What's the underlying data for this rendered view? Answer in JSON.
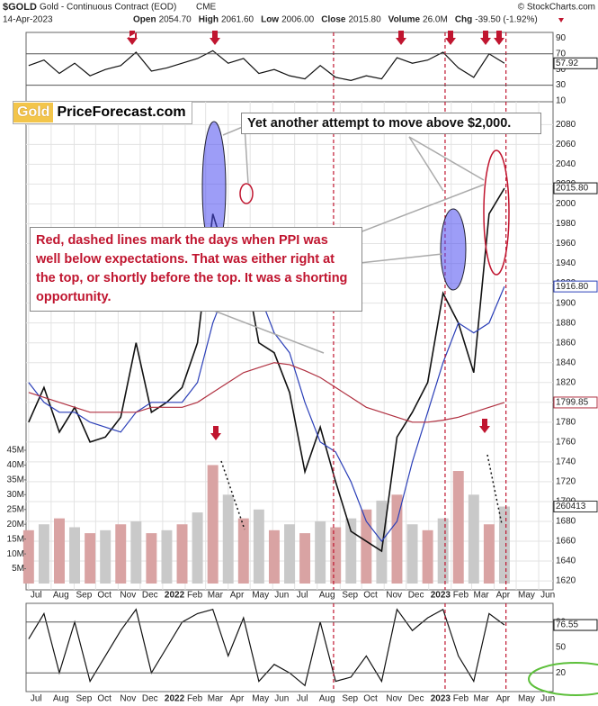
{
  "chart_data": [
    {
      "type": "line",
      "title": "$GOLD",
      "subtitle": "Gold - Continuous Contract (EOD)",
      "exchange": "CME",
      "source": "© StockCharts.com",
      "date": "14-Apr-2023",
      "quote": [
        {
          "label": "Open",
          "value": "2054.70"
        },
        {
          "label": "High",
          "value": "2061.60"
        },
        {
          "label": "Low",
          "value": "2006.00"
        },
        {
          "label": "Close",
          "value": "2015.80"
        },
        {
          "label": "Volume",
          "value": "26.0M"
        },
        {
          "label": "Chg",
          "value": "-39.50 (-1.92%)"
        }
      ],
      "annotations": {
        "logo_left": "Gold",
        "logo_right": "PriceForecast.com",
        "note": "Yet another attempt to move above $2,000.",
        "callout": "Red, dashed lines mark the days when PPI was well below expectations. That was either right at the top, or shortly before the top. It was a shorting opportunity."
      },
      "x": [
        0,
        3,
        6,
        9,
        12,
        15,
        18,
        21,
        24,
        27,
        30,
        33,
        36,
        39,
        42,
        45,
        48,
        51,
        54,
        57,
        60,
        63,
        66,
        69,
        72,
        75,
        78,
        81,
        84,
        87,
        90,
        93
      ],
      "xlim": [
        -0.5,
        102.5
      ],
      "xticks": [
        {
          "value": 0,
          "label": "Jul"
        },
        {
          "value": 4.4,
          "label": "Aug"
        },
        {
          "value": 8.9,
          "label": "Sep"
        },
        {
          "value": 13.1,
          "label": "Oct"
        },
        {
          "value": 17.5,
          "label": "Nov"
        },
        {
          "value": 21.8,
          "label": "Dec"
        },
        {
          "value": 26.2,
          "label": "2022"
        },
        {
          "value": 30.6,
          "label": "Feb"
        },
        {
          "value": 34.6,
          "label": "Mar"
        },
        {
          "value": 39,
          "label": "Apr"
        },
        {
          "value": 43.3,
          "label": "May"
        },
        {
          "value": 47.7,
          "label": "Jun"
        },
        {
          "value": 52,
          "label": "Jul"
        },
        {
          "value": 56.4,
          "label": "Aug"
        },
        {
          "value": 60.9,
          "label": "Sep"
        },
        {
          "value": 65.1,
          "label": "Oct"
        },
        {
          "value": 69.5,
          "label": "Nov"
        },
        {
          "value": 73.8,
          "label": "Dec"
        },
        {
          "value": 78.2,
          "label": "2023"
        },
        {
          "value": 82.6,
          "label": "Feb"
        },
        {
          "value": 86.6,
          "label": "Mar"
        },
        {
          "value": 91,
          "label": "Apr"
        },
        {
          "value": 95.3,
          "label": "May"
        },
        {
          "value": 99.7,
          "label": "Jun"
        }
      ],
      "vlines": [
        59.6,
        81.4,
        93.3
      ],
      "ylim": [
        1611,
        2103
      ],
      "yticks": [
        1620,
        1640,
        1660,
        1680,
        1700,
        1720,
        1740,
        1760,
        1780,
        1800,
        1820,
        1840,
        1860,
        1880,
        1900,
        1920,
        1940,
        1960,
        1980,
        2000,
        2020,
        2040,
        2060,
        2080
      ],
      "grid": true,
      "series": [
        {
          "color": "#111111",
          "last_label": "2015.80",
          "values": [
            1780,
            1815,
            1770,
            1795,
            1760,
            1765,
            1785,
            1860,
            1790,
            1800,
            1815,
            1860,
            1990,
            1940,
            1945,
            1860,
            1850,
            1810,
            1730,
            1775,
            1720,
            1670,
            1660,
            1650,
            1765,
            1790,
            1820,
            1910,
            1880,
            1830,
            1990,
            2015.8
          ]
        },
        {
          "color": "#2b3fb8",
          "last_label": "1916.80",
          "values": [
            1820,
            1800,
            1790,
            1790,
            1780,
            1775,
            1770,
            1790,
            1800,
            1800,
            1800,
            1820,
            1880,
            1920,
            1930,
            1910,
            1870,
            1850,
            1800,
            1760,
            1750,
            1720,
            1680,
            1660,
            1680,
            1740,
            1790,
            1840,
            1880,
            1870,
            1880,
            1916.8
          ]
        },
        {
          "color": "#b03040",
          "last_label": "1799.85",
          "values": [
            1810,
            1805,
            1800,
            1795,
            1790,
            1790,
            1790,
            1790,
            1795,
            1795,
            1795,
            1800,
            1810,
            1820,
            1830,
            1835,
            1840,
            1838,
            1832,
            1825,
            1815,
            1805,
            1795,
            1790,
            1785,
            1780,
            1780,
            1782,
            1785,
            1790,
            1795,
            1799.85
          ]
        }
      ]
    },
    {
      "type": "bar",
      "color": "#d9a3a3",
      "last_label": "260413",
      "ylim": [
        0,
        45
      ],
      "yticks": [
        {
          "value": 5,
          "label": "5M"
        },
        {
          "value": 10,
          "label": "10M"
        },
        {
          "value": 15,
          "label": "15M"
        },
        {
          "value": 20,
          "label": "20M"
        },
        {
          "value": 25,
          "label": "25M"
        },
        {
          "value": 30,
          "label": "30M"
        },
        {
          "value": 35,
          "label": "35M"
        },
        {
          "value": 40,
          "label": "40M"
        },
        {
          "value": 45,
          "label": "45M"
        }
      ],
      "values": [
        18,
        20,
        22,
        19,
        17,
        18,
        20,
        21,
        17,
        18,
        20,
        24,
        40,
        30,
        22,
        25,
        18,
        20,
        17,
        21,
        19,
        22,
        25,
        28,
        30,
        20,
        18,
        22,
        38,
        30,
        20,
        26.0
      ]
    },
    {
      "type": "line",
      "ylim": [
        10,
        95
      ],
      "yticks": [
        10,
        30,
        50,
        70,
        90
      ],
      "levels": [
        30,
        70
      ],
      "series": [
        {
          "color": "#111111",
          "last_label": "57.92",
          "values": [
            55,
            62,
            45,
            58,
            42,
            50,
            55,
            72,
            48,
            52,
            58,
            64,
            74,
            58,
            64,
            45,
            50,
            42,
            38,
            55,
            40,
            36,
            42,
            38,
            65,
            58,
            62,
            72,
            52,
            40,
            70,
            57.92
          ]
        }
      ]
    },
    {
      "type": "line",
      "ylim": [
        0,
        100
      ],
      "yticks": [
        20,
        50,
        80
      ],
      "levels": [
        20,
        80
      ],
      "series": [
        {
          "color": "#111111",
          "last_label": "76.55",
          "values": [
            60,
            90,
            20,
            80,
            10,
            40,
            70,
            95,
            20,
            50,
            80,
            90,
            95,
            40,
            85,
            10,
            30,
            20,
            5,
            80,
            10,
            15,
            40,
            10,
            95,
            70,
            85,
            95,
            40,
            10,
            90,
            76.55
          ]
        }
      ]
    }
  ]
}
